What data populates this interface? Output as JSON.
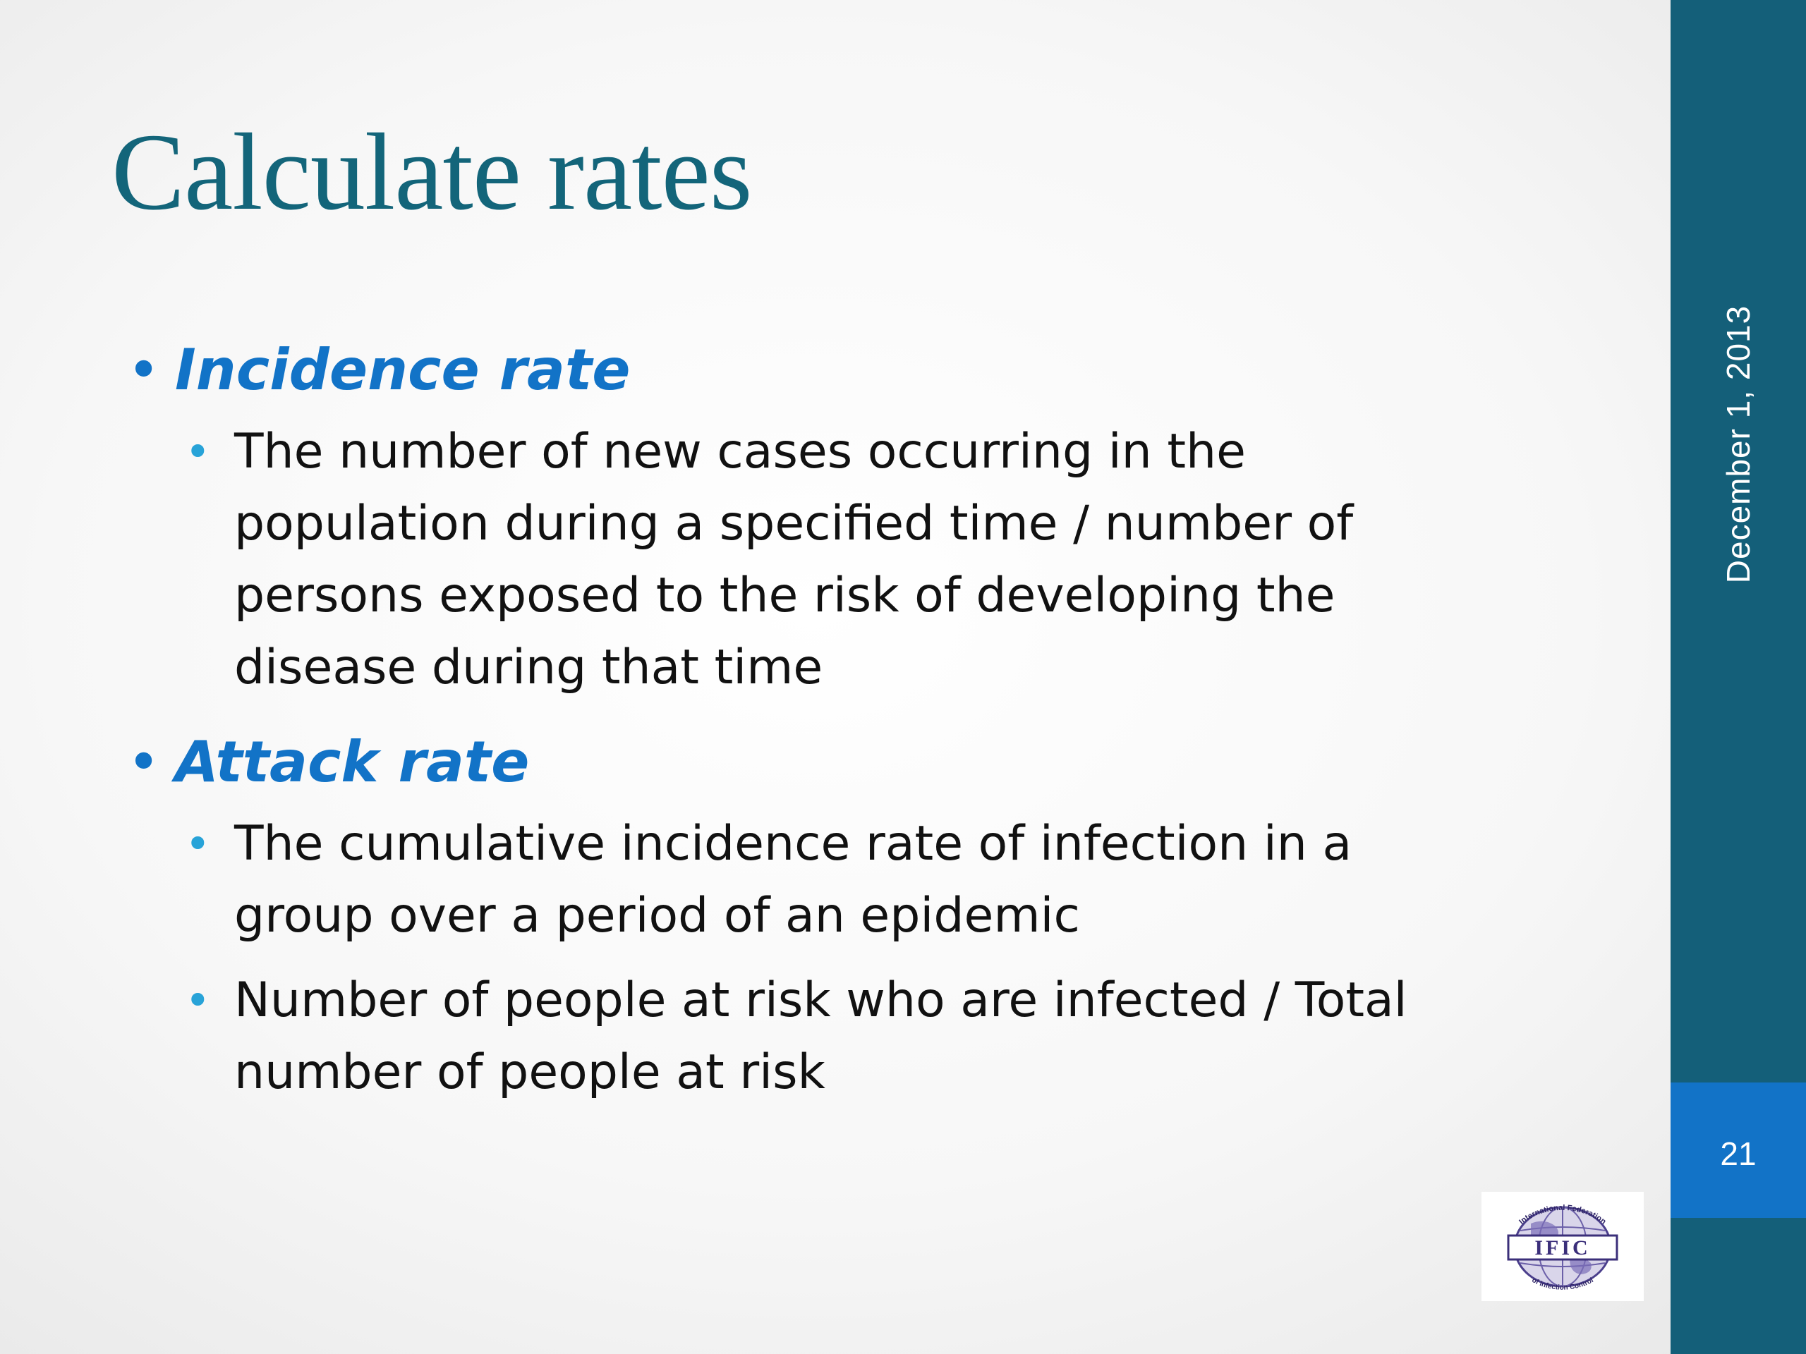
{
  "slide": {
    "title": "Calculate rates",
    "sections": [
      {
        "heading": "Incidence rate",
        "items": [
          "The number of new cases occurring in the population during a specified time / number of persons exposed to the risk of developing the disease during that time"
        ]
      },
      {
        "heading": "Attack rate",
        "items": [
          "The cumulative incidence rate of infection in a group over a period of an epidemic",
          "Number of people at risk who are infected / Total number of people at risk"
        ]
      }
    ]
  },
  "sidebar": {
    "date": "December 1, 2013",
    "page_number": "21"
  },
  "logo": {
    "acronym": "IFIC",
    "arc_top": "International Federation",
    "arc_bottom": "of Infection Control"
  },
  "colors": {
    "title": "#13657a",
    "heading": "#1273c7",
    "sidebar": "#145f79",
    "page_box": "#1273c7",
    "sub_bullet": "#28a3d8"
  }
}
